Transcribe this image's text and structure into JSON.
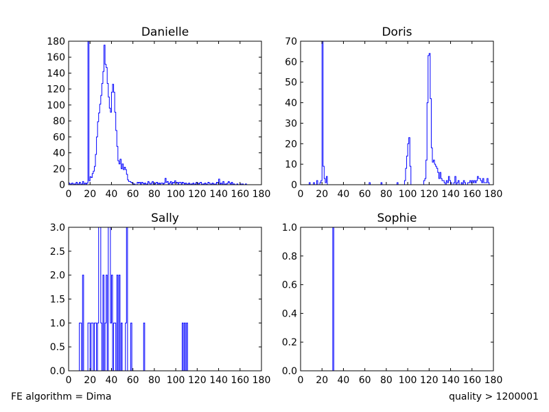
{
  "footer": {
    "left": "FE algorithm = Dima",
    "right": "quality > 1200001"
  },
  "colors": {
    "line": "#0000ff",
    "axes": "#000000"
  },
  "chart_data": [
    {
      "type": "histogram",
      "title": "Danielle",
      "xlim": [
        0,
        180
      ],
      "ylim": [
        0,
        180
      ],
      "xticks": [
        0,
        20,
        40,
        60,
        80,
        100,
        120,
        140,
        160,
        180
      ],
      "yticks": [
        0,
        20,
        40,
        60,
        80,
        100,
        120,
        140,
        160,
        180
      ],
      "bin_width": 1,
      "bins": [
        [
          0,
          2
        ],
        [
          1,
          1
        ],
        [
          2,
          1
        ],
        [
          3,
          2
        ],
        [
          4,
          0
        ],
        [
          5,
          1
        ],
        [
          6,
          1
        ],
        [
          7,
          3
        ],
        [
          8,
          0
        ],
        [
          9,
          1
        ],
        [
          10,
          3
        ],
        [
          11,
          0
        ],
        [
          12,
          1
        ],
        [
          13,
          4
        ],
        [
          14,
          0
        ],
        [
          15,
          2
        ],
        [
          16,
          1
        ],
        [
          17,
          2
        ],
        [
          18,
          180
        ],
        [
          19,
          5
        ],
        [
          20,
          10
        ],
        [
          21,
          9
        ],
        [
          22,
          14
        ],
        [
          23,
          17
        ],
        [
          24,
          23
        ],
        [
          25,
          38
        ],
        [
          26,
          60
        ],
        [
          27,
          79
        ],
        [
          28,
          90
        ],
        [
          29,
          101
        ],
        [
          30,
          112
        ],
        [
          31,
          127
        ],
        [
          32,
          142
        ],
        [
          33,
          175
        ],
        [
          34,
          151
        ],
        [
          35,
          147
        ],
        [
          36,
          127
        ],
        [
          37,
          110
        ],
        [
          38,
          96
        ],
        [
          39,
          91
        ],
        [
          40,
          116
        ],
        [
          41,
          126
        ],
        [
          42,
          116
        ],
        [
          43,
          91
        ],
        [
          44,
          68
        ],
        [
          45,
          48
        ],
        [
          46,
          30
        ],
        [
          47,
          26
        ],
        [
          48,
          32
        ],
        [
          49,
          20
        ],
        [
          50,
          26
        ],
        [
          51,
          19
        ],
        [
          52,
          22
        ],
        [
          53,
          19
        ],
        [
          54,
          13
        ],
        [
          55,
          6
        ],
        [
          56,
          4
        ],
        [
          57,
          4
        ],
        [
          58,
          3
        ],
        [
          59,
          2
        ],
        [
          60,
          1
        ],
        [
          61,
          1
        ],
        [
          62,
          0
        ],
        [
          63,
          0
        ],
        [
          64,
          3
        ],
        [
          65,
          2
        ],
        [
          66,
          3
        ],
        [
          67,
          1
        ],
        [
          68,
          3
        ],
        [
          69,
          2
        ],
        [
          70,
          1
        ],
        [
          71,
          2
        ],
        [
          72,
          0
        ],
        [
          73,
          1
        ],
        [
          74,
          4
        ],
        [
          75,
          2
        ],
        [
          76,
          0
        ],
        [
          77,
          2
        ],
        [
          78,
          4
        ],
        [
          79,
          1
        ],
        [
          80,
          1
        ],
        [
          81,
          2
        ],
        [
          82,
          3
        ],
        [
          83,
          1
        ],
        [
          84,
          2
        ],
        [
          85,
          1
        ],
        [
          86,
          2
        ],
        [
          87,
          2
        ],
        [
          88,
          1
        ],
        [
          89,
          2
        ],
        [
          90,
          8
        ],
        [
          91,
          3
        ],
        [
          92,
          4
        ],
        [
          93,
          1
        ],
        [
          94,
          2
        ],
        [
          95,
          4
        ],
        [
          96,
          1
        ],
        [
          97,
          3
        ],
        [
          98,
          2
        ],
        [
          99,
          5
        ],
        [
          100,
          2
        ],
        [
          101,
          3
        ],
        [
          102,
          1
        ],
        [
          103,
          3
        ],
        [
          104,
          3
        ],
        [
          105,
          1
        ],
        [
          106,
          3
        ],
        [
          107,
          2
        ],
        [
          108,
          1
        ],
        [
          109,
          2
        ],
        [
          110,
          0
        ],
        [
          111,
          1
        ],
        [
          112,
          2
        ],
        [
          113,
          0
        ],
        [
          114,
          1
        ],
        [
          115,
          1
        ],
        [
          116,
          2
        ],
        [
          117,
          0
        ],
        [
          118,
          1
        ],
        [
          119,
          3
        ],
        [
          120,
          2
        ],
        [
          121,
          1
        ],
        [
          122,
          2
        ],
        [
          123,
          3
        ],
        [
          124,
          0
        ],
        [
          125,
          1
        ],
        [
          126,
          1
        ],
        [
          127,
          2
        ],
        [
          128,
          1
        ],
        [
          129,
          0
        ],
        [
          130,
          3
        ],
        [
          131,
          2
        ],
        [
          132,
          0
        ],
        [
          133,
          1
        ],
        [
          134,
          2
        ],
        [
          135,
          1
        ],
        [
          136,
          0
        ],
        [
          137,
          1
        ],
        [
          138,
          3
        ],
        [
          139,
          2
        ],
        [
          140,
          7
        ],
        [
          141,
          1
        ],
        [
          142,
          2
        ],
        [
          143,
          0
        ],
        [
          144,
          4
        ],
        [
          145,
          0
        ],
        [
          146,
          1
        ],
        [
          147,
          1
        ],
        [
          148,
          2
        ],
        [
          149,
          4
        ],
        [
          150,
          2
        ],
        [
          151,
          1
        ],
        [
          152,
          3
        ],
        [
          153,
          1
        ],
        [
          154,
          1
        ],
        [
          155,
          0
        ],
        [
          156,
          0
        ],
        [
          157,
          1
        ],
        [
          158,
          0
        ],
        [
          159,
          0
        ],
        [
          160,
          1
        ],
        [
          161,
          0
        ],
        [
          162,
          1
        ],
        [
          163,
          0
        ],
        [
          164,
          0
        ],
        [
          165,
          1
        ],
        [
          166,
          0
        ],
        [
          167,
          0
        ],
        [
          168,
          0
        ],
        [
          169,
          0
        ],
        [
          170,
          0
        ],
        [
          171,
          0
        ],
        [
          172,
          0
        ],
        [
          173,
          0
        ],
        [
          174,
          0
        ],
        [
          175,
          0
        ],
        [
          176,
          0
        ],
        [
          177,
          0
        ],
        [
          178,
          0
        ],
        [
          179,
          0
        ]
      ]
    },
    {
      "type": "histogram",
      "title": "Doris",
      "xlim": [
        0,
        180
      ],
      "ylim": [
        0,
        70
      ],
      "xticks": [
        0,
        20,
        40,
        60,
        80,
        100,
        120,
        140,
        160,
        180
      ],
      "yticks": [
        0,
        10,
        20,
        30,
        40,
        50,
        60,
        70
      ],
      "bin_width": 1,
      "bins": [
        [
          8,
          1
        ],
        [
          9,
          0
        ],
        [
          12,
          1
        ],
        [
          13,
          0
        ],
        [
          15,
          2
        ],
        [
          16,
          0
        ],
        [
          18,
          1
        ],
        [
          19,
          2
        ],
        [
          20,
          70
        ],
        [
          21,
          9
        ],
        [
          22,
          3
        ],
        [
          23,
          1
        ],
        [
          24,
          4
        ],
        [
          25,
          0
        ],
        [
          64,
          1
        ],
        [
          65,
          0
        ],
        [
          75,
          1
        ],
        [
          76,
          0
        ],
        [
          90,
          1
        ],
        [
          91,
          0
        ],
        [
          97,
          2
        ],
        [
          98,
          8
        ],
        [
          99,
          14
        ],
        [
          100,
          20
        ],
        [
          101,
          23
        ],
        [
          102,
          9
        ],
        [
          103,
          0
        ],
        [
          115,
          2
        ],
        [
          116,
          3
        ],
        [
          117,
          12
        ],
        [
          118,
          40
        ],
        [
          119,
          63
        ],
        [
          120,
          64
        ],
        [
          121,
          42
        ],
        [
          122,
          18
        ],
        [
          123,
          11
        ],
        [
          124,
          12
        ],
        [
          125,
          10
        ],
        [
          126,
          9
        ],
        [
          127,
          8
        ],
        [
          128,
          6
        ],
        [
          129,
          3
        ],
        [
          130,
          6
        ],
        [
          131,
          3
        ],
        [
          132,
          2
        ],
        [
          133,
          2
        ],
        [
          134,
          1
        ],
        [
          135,
          0
        ],
        [
          136,
          2
        ],
        [
          137,
          1
        ],
        [
          138,
          4
        ],
        [
          139,
          2
        ],
        [
          140,
          1
        ],
        [
          141,
          0
        ],
        [
          143,
          1
        ],
        [
          144,
          4
        ],
        [
          145,
          0
        ],
        [
          146,
          1
        ],
        [
          147,
          2
        ],
        [
          148,
          0
        ],
        [
          150,
          1
        ],
        [
          151,
          0
        ],
        [
          152,
          2
        ],
        [
          153,
          1
        ],
        [
          154,
          0
        ],
        [
          156,
          1
        ],
        [
          157,
          1
        ],
        [
          158,
          2
        ],
        [
          159,
          1
        ],
        [
          160,
          2
        ],
        [
          161,
          1
        ],
        [
          162,
          2
        ],
        [
          163,
          1
        ],
        [
          164,
          2
        ],
        [
          165,
          4
        ],
        [
          166,
          3
        ],
        [
          167,
          3
        ],
        [
          168,
          2
        ],
        [
          169,
          1
        ],
        [
          170,
          3
        ],
        [
          171,
          1
        ],
        [
          172,
          1
        ],
        [
          173,
          1
        ],
        [
          174,
          3
        ],
        [
          175,
          1
        ],
        [
          176,
          0
        ]
      ]
    },
    {
      "type": "histogram",
      "title": "Sally",
      "xlim": [
        0,
        180
      ],
      "ylim": [
        0,
        3
      ],
      "xticks": [
        0,
        20,
        40,
        60,
        80,
        100,
        120,
        140,
        160,
        180
      ],
      "yticks": [
        "0.0",
        "0.5",
        "1.0",
        "1.5",
        "2.0",
        "2.5",
        "3.0"
      ],
      "bin_width": 1,
      "bins": [
        [
          10,
          1
        ],
        [
          11,
          1
        ],
        [
          12,
          0
        ],
        [
          13,
          2
        ],
        [
          14,
          0
        ],
        [
          18,
          1
        ],
        [
          19,
          1
        ],
        [
          20,
          0
        ],
        [
          21,
          1
        ],
        [
          22,
          1
        ],
        [
          23,
          0
        ],
        [
          24,
          1
        ],
        [
          25,
          1
        ],
        [
          26,
          0
        ],
        [
          27,
          1
        ],
        [
          28,
          3
        ],
        [
          29,
          3
        ],
        [
          30,
          1
        ],
        [
          31,
          0
        ],
        [
          32,
          2
        ],
        [
          33,
          0
        ],
        [
          34,
          1
        ],
        [
          35,
          2
        ],
        [
          36,
          0
        ],
        [
          37,
          3
        ],
        [
          38,
          3
        ],
        [
          39,
          1
        ],
        [
          40,
          2
        ],
        [
          41,
          0
        ],
        [
          42,
          1
        ],
        [
          43,
          1
        ],
        [
          44,
          0
        ],
        [
          45,
          2
        ],
        [
          46,
          0
        ],
        [
          47,
          2
        ],
        [
          48,
          0
        ],
        [
          49,
          1
        ],
        [
          50,
          0
        ],
        [
          53,
          1
        ],
        [
          54,
          3
        ],
        [
          55,
          0
        ],
        [
          58,
          1
        ],
        [
          59,
          0
        ],
        [
          70,
          1
        ],
        [
          71,
          0
        ],
        [
          106,
          1
        ],
        [
          107,
          0
        ],
        [
          108,
          1
        ],
        [
          109,
          0
        ],
        [
          110,
          1
        ],
        [
          111,
          0
        ]
      ]
    },
    {
      "type": "histogram",
      "title": "Sophie",
      "xlim": [
        0,
        180
      ],
      "ylim": [
        0,
        1
      ],
      "xticks": [
        0,
        20,
        40,
        60,
        80,
        100,
        120,
        140,
        160,
        180
      ],
      "yticks": [
        "0.0",
        "0.2",
        "0.4",
        "0.6",
        "0.8",
        "1.0"
      ],
      "bin_width": 1,
      "bins": [
        [
          30,
          1
        ],
        [
          31,
          0
        ]
      ]
    }
  ]
}
